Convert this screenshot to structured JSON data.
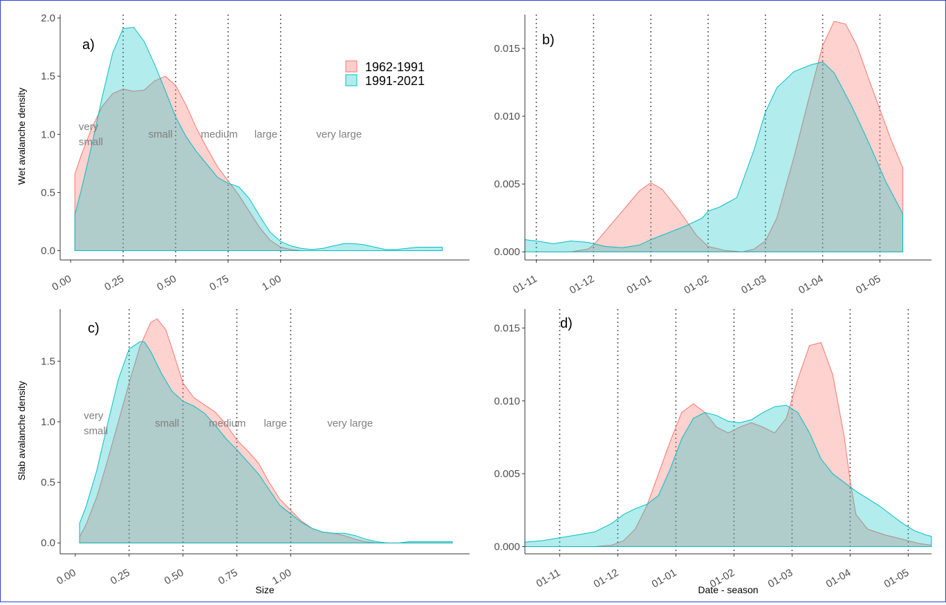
{
  "colors": {
    "period1": "#F8766D",
    "period2": "#00BFC4",
    "period1_fill": "#F8766D",
    "period2_fill": "#00BFC4",
    "vline": "#595959",
    "axis": "#333333"
  },
  "legend": {
    "position": "top-right of panel a",
    "items": [
      "1962-1991",
      "1991-2021"
    ]
  },
  "axis_titles": {
    "wet_y": "Wet avalanche density",
    "slab_y": "Slab avalanche density",
    "size_x": "Size",
    "date_x": "Date - season"
  },
  "chart_data": [
    {
      "panel": "a)",
      "type": "area",
      "density_of": "wet avalanches vs size",
      "xlim": [
        -0.05,
        1.9
      ],
      "ylim": [
        -0.08,
        2.03
      ],
      "xticks": [
        "0.00",
        "0.25",
        "0.50",
        "0.75",
        "1.00"
      ],
      "yticks": [
        "0.0",
        "0.5",
        "1.0",
        "1.5",
        "2.0"
      ],
      "vlines": [
        0.25,
        0.5,
        0.75,
        1.0
      ],
      "size_classes": [
        "very small",
        "small",
        "medium",
        "large",
        "very large"
      ],
      "series": [
        {
          "name": "1962-1991",
          "x": [
            0.02,
            0.05,
            0.1,
            0.15,
            0.2,
            0.25,
            0.3,
            0.35,
            0.4,
            0.45,
            0.5,
            0.55,
            0.6,
            0.65,
            0.7,
            0.75,
            0.8,
            0.85,
            0.9,
            0.95,
            1.0,
            1.05,
            1.1
          ],
          "y": [
            0.66,
            0.82,
            1.05,
            1.24,
            1.35,
            1.39,
            1.37,
            1.38,
            1.46,
            1.5,
            1.42,
            1.25,
            1.05,
            0.88,
            0.72,
            0.6,
            0.48,
            0.34,
            0.2,
            0.09,
            0.03,
            0.01,
            0.0
          ]
        },
        {
          "name": "1991-2021",
          "x": [
            0.02,
            0.05,
            0.1,
            0.15,
            0.2,
            0.25,
            0.3,
            0.35,
            0.4,
            0.45,
            0.5,
            0.55,
            0.6,
            0.65,
            0.7,
            0.75,
            0.8,
            0.85,
            0.9,
            0.95,
            1.0,
            1.05,
            1.1,
            1.15,
            1.2,
            1.25,
            1.3,
            1.35,
            1.4,
            1.45,
            1.5,
            1.55,
            1.6,
            1.65,
            1.7,
            1.77
          ],
          "y": [
            0.31,
            0.52,
            0.9,
            1.32,
            1.7,
            1.91,
            1.92,
            1.8,
            1.6,
            1.38,
            1.15,
            0.98,
            0.85,
            0.74,
            0.63,
            0.58,
            0.55,
            0.45,
            0.3,
            0.16,
            0.08,
            0.04,
            0.02,
            0.01,
            0.02,
            0.04,
            0.06,
            0.06,
            0.05,
            0.03,
            0.01,
            0.01,
            0.02,
            0.03,
            0.03,
            0.03
          ]
        }
      ]
    },
    {
      "panel": "b)",
      "type": "area",
      "density_of": "wet avalanches vs date",
      "xlim": [
        -0.2,
        6.9
      ],
      "ylim": [
        -0.0006,
        0.0175
      ],
      "xticks": [
        "01-11",
        "01-12",
        "01-01",
        "01-02",
        "01-03",
        "01-04",
        "01-05"
      ],
      "yticks": [
        "0.000",
        "0.005",
        "0.010",
        "0.015"
      ],
      "series": [
        {
          "name": "1962-1991",
          "x": [
            0.0,
            0.3,
            0.6,
            0.9,
            1.0,
            1.2,
            1.5,
            1.8,
            2.0,
            2.2,
            2.5,
            2.8,
            3.0,
            3.3,
            3.6,
            3.8,
            4.0,
            4.2,
            4.5,
            4.8,
            5.0,
            5.2,
            5.4,
            5.6,
            5.8,
            6.0,
            6.2,
            6.4
          ],
          "y": [
            0.0,
            0.0,
            0.0,
            0.0002,
            0.0005,
            0.0015,
            0.003,
            0.0045,
            0.0051,
            0.0046,
            0.003,
            0.0012,
            0.0004,
            0.0001,
            0.0,
            0.0002,
            0.0008,
            0.0025,
            0.007,
            0.012,
            0.0152,
            0.017,
            0.0168,
            0.0152,
            0.0128,
            0.0105,
            0.0082,
            0.0062
          ]
        },
        {
          "name": "1991-2021",
          "x": [
            -0.2,
            0.0,
            0.3,
            0.6,
            0.9,
            1.2,
            1.5,
            1.8,
            2.0,
            2.3,
            2.6,
            2.9,
            3.0,
            3.2,
            3.5,
            3.8,
            4.0,
            4.2,
            4.5,
            4.8,
            5.0,
            5.2,
            5.5,
            5.8,
            6.1,
            6.4
          ],
          "y": [
            0.0009,
            0.0008,
            0.0006,
            0.0008,
            0.0007,
            0.0004,
            0.0003,
            0.0005,
            0.0009,
            0.0014,
            0.0019,
            0.0025,
            0.003,
            0.0033,
            0.004,
            0.0075,
            0.0103,
            0.0121,
            0.0133,
            0.0138,
            0.014,
            0.0132,
            0.0108,
            0.0081,
            0.0052,
            0.0028
          ]
        }
      ]
    },
    {
      "panel": "c)",
      "type": "area",
      "density_of": "slab avalanches vs size",
      "xlim": [
        -0.07,
        1.83
      ],
      "ylim": [
        -0.09,
        1.93
      ],
      "xticks": [
        "0.00",
        "0.25",
        "0.50",
        "0.75",
        "1.00"
      ],
      "yticks": [
        "0.0",
        "0.5",
        "1.0",
        "1.5"
      ],
      "vlines": [
        0.25,
        0.5,
        0.75,
        1.0
      ],
      "size_classes": [
        "very small",
        "small",
        "medium",
        "large",
        "very large"
      ],
      "series": [
        {
          "name": "1962-1991",
          "x": [
            0.02,
            0.05,
            0.1,
            0.15,
            0.2,
            0.25,
            0.3,
            0.35,
            0.38,
            0.42,
            0.45,
            0.5,
            0.55,
            0.6,
            0.65,
            0.7,
            0.75,
            0.8,
            0.85,
            0.9,
            0.95,
            1.0,
            1.05,
            1.1,
            1.15,
            1.2,
            1.25,
            1.3,
            1.35,
            1.4,
            1.45,
            1.5,
            1.55,
            1.6,
            1.65,
            1.7,
            1.75
          ],
          "y": [
            0.05,
            0.15,
            0.38,
            0.68,
            1.0,
            1.32,
            1.62,
            1.82,
            1.85,
            1.76,
            1.6,
            1.32,
            1.2,
            1.14,
            1.08,
            0.98,
            0.85,
            0.76,
            0.66,
            0.5,
            0.36,
            0.27,
            0.18,
            0.12,
            0.09,
            0.08,
            0.06,
            0.03,
            0.01,
            0.0,
            0.0,
            0.0,
            0.0,
            0.0,
            0.0,
            0.0,
            0.0
          ]
        },
        {
          "name": "1991-2021",
          "x": [
            0.02,
            0.05,
            0.1,
            0.15,
            0.2,
            0.25,
            0.3,
            0.32,
            0.35,
            0.4,
            0.45,
            0.5,
            0.55,
            0.6,
            0.65,
            0.7,
            0.75,
            0.8,
            0.85,
            0.9,
            0.95,
            1.0,
            1.05,
            1.1,
            1.15,
            1.2,
            1.25,
            1.3,
            1.35,
            1.4,
            1.45,
            1.5,
            1.55,
            1.6,
            1.65,
            1.7,
            1.75
          ],
          "y": [
            0.16,
            0.3,
            0.6,
            0.98,
            1.35,
            1.6,
            1.66,
            1.66,
            1.58,
            1.4,
            1.25,
            1.17,
            1.13,
            1.07,
            0.97,
            0.86,
            0.77,
            0.67,
            0.57,
            0.44,
            0.31,
            0.24,
            0.17,
            0.12,
            0.09,
            0.08,
            0.08,
            0.06,
            0.03,
            0.01,
            0.0,
            0.0,
            0.01,
            0.01,
            0.01,
            0.01,
            0.01
          ]
        }
      ]
    },
    {
      "panel": "d)",
      "type": "area",
      "density_of": "slab avalanches vs date",
      "xlim": [
        -0.6,
        6.4
      ],
      "ylim": [
        -0.0005,
        0.0163
      ],
      "xticks": [
        "01-11",
        "01-12",
        "01-01",
        "01-02",
        "01-03",
        "01-04",
        "01-05"
      ],
      "yticks": [
        "0.000",
        "0.005",
        "0.010",
        "0.015"
      ],
      "series": [
        {
          "name": "1962-1991",
          "x": [
            -0.5,
            -0.2,
            0.2,
            0.6,
            0.9,
            1.1,
            1.3,
            1.5,
            1.7,
            1.9,
            2.1,
            2.3,
            2.5,
            2.7,
            2.9,
            3.1,
            3.3,
            3.5,
            3.7,
            3.9,
            4.1,
            4.3,
            4.5,
            4.7,
            4.9,
            5.0,
            5.1,
            5.3,
            5.6,
            5.9,
            6.2,
            6.4
          ],
          "y": [
            0.0,
            0.0,
            0.0,
            0.0,
            0.0001,
            0.0004,
            0.0012,
            0.0028,
            0.005,
            0.0072,
            0.0092,
            0.0098,
            0.0092,
            0.0082,
            0.0078,
            0.0082,
            0.0085,
            0.0082,
            0.0078,
            0.0088,
            0.0115,
            0.0138,
            0.014,
            0.0118,
            0.0075,
            0.0045,
            0.0022,
            0.0012,
            0.0008,
            0.0005,
            0.0002,
            0.0001
          ]
        },
        {
          "name": "1991-2021",
          "x": [
            -0.6,
            -0.3,
            0.0,
            0.3,
            0.6,
            0.9,
            1.1,
            1.3,
            1.5,
            1.7,
            1.9,
            2.1,
            2.3,
            2.5,
            2.7,
            2.9,
            3.1,
            3.3,
            3.5,
            3.7,
            3.9,
            4.1,
            4.3,
            4.5,
            4.7,
            4.9,
            5.1,
            5.3,
            5.5,
            5.7,
            5.9,
            6.1,
            6.3,
            6.4
          ],
          "y": [
            0.0003,
            0.0004,
            0.0006,
            0.0008,
            0.001,
            0.0016,
            0.0022,
            0.0026,
            0.0029,
            0.0035,
            0.0053,
            0.0074,
            0.0088,
            0.0092,
            0.009,
            0.0086,
            0.0085,
            0.0087,
            0.0092,
            0.0096,
            0.0097,
            0.0092,
            0.0078,
            0.006,
            0.005,
            0.0044,
            0.0038,
            0.0033,
            0.0028,
            0.0022,
            0.0016,
            0.0011,
            0.0008,
            0.0007
          ]
        }
      ]
    }
  ]
}
